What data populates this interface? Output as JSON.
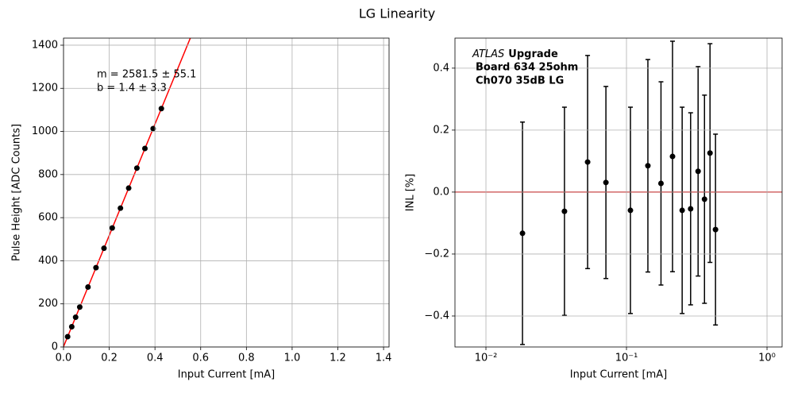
{
  "title": "LG Linearity",
  "chart_data": [
    {
      "type": "scatter",
      "x": [
        0.018,
        0.036,
        0.053,
        0.071,
        0.107,
        0.142,
        0.177,
        0.213,
        0.249,
        0.285,
        0.321,
        0.356,
        0.392,
        0.428
      ],
      "series": [
        {
          "color": "#000000",
          "values": [
            48,
            94,
            138,
            185,
            278,
            368,
            458,
            552,
            644,
            737,
            830,
            921,
            1013,
            1106
          ]
        }
      ],
      "fit": {
        "slope": 2581.5,
        "intercept": 1.4,
        "color": "#ff0000"
      },
      "annotation": [
        "m = 2581.5 ± 55.1",
        " b = 1.4 ± 3.3"
      ],
      "xlabel": "Input Current [mA]",
      "ylabel": "Pulse Height [ADC Counts]",
      "xlim": [
        0,
        1.424
      ],
      "ylim": [
        0,
        1433
      ],
      "xticks": [
        {
          "value": 0,
          "label": "0.0"
        },
        0.2,
        0.4,
        0.6,
        0.8,
        {
          "value": 1,
          "label": "1.0"
        },
        1.2,
        1.4
      ],
      "yticks": [
        0,
        200,
        400,
        600,
        800,
        1000,
        1200,
        1400
      ],
      "grid": true
    },
    {
      "type": "errorbar",
      "xscale": "log",
      "x": [
        0.0182,
        0.0362,
        0.0529,
        0.0714,
        0.1067,
        0.142,
        0.176,
        0.2126,
        0.249,
        0.286,
        0.3233,
        0.359,
        0.393,
        0.43
      ],
      "series": [
        {
          "color": "#000000",
          "values": [
            -0.133,
            -0.062,
            0.097,
            0.031,
            -0.059,
            0.085,
            0.028,
            0.115,
            -0.059,
            -0.054,
            0.067,
            -0.023,
            0.126,
            -0.121
          ],
          "errors": [
            0.359,
            0.336,
            0.344,
            0.31,
            0.333,
            0.343,
            0.328,
            0.372,
            0.333,
            0.31,
            0.338,
            0.336,
            0.353,
            0.308
          ]
        }
      ],
      "hline": {
        "value": 0,
        "color": "#ff0000"
      },
      "annotation": [
        "ATLAS",
        "Upgrade",
        "Board 634 25ohm",
        "Ch070 35dB LG"
      ],
      "xlabel": "Input Current [mA]",
      "ylabel": "INL [%]",
      "xlim": [
        0.00602,
        1.28
      ],
      "ylim": [
        -0.5,
        0.497
      ],
      "xticks": [
        {
          "value": 0.01,
          "label": "10⁻²"
        },
        {
          "value": 0.1,
          "label": "10⁻¹"
        },
        {
          "value": 1,
          "label": "10⁰"
        }
      ],
      "yticks": [
        {
          "value": -0.4,
          "label": "−0.4"
        },
        {
          "value": -0.2,
          "label": "−0.2"
        },
        {
          "value": 0,
          "label": "0.0"
        },
        0.2,
        0.4
      ],
      "grid": true
    }
  ]
}
